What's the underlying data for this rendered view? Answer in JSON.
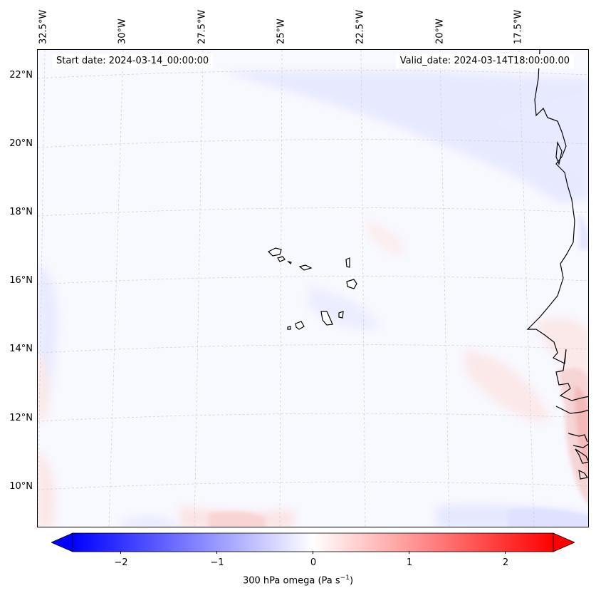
{
  "map": {
    "start_date": "Start date: 2024-03-14_00:00:00",
    "valid_date": "Valid_date: 2024-03-14T18:00:00.00",
    "lon_labels": [
      "32.5°W",
      "30°W",
      "27.5°W",
      "25°W",
      "22.5°W",
      "20°W",
      "17.5°W"
    ],
    "lat_labels": [
      "22°N",
      "20°N",
      "18°N",
      "16°N",
      "14°N",
      "12°N",
      "10°N"
    ],
    "gridlines": true,
    "variable": "300 hPa omega",
    "colormap": "bwr",
    "colors": {
      "negative": "#0000ff",
      "zero": "#ffffff",
      "positive": "#ff0000",
      "coast": "#000000",
      "grid": "#cccccc"
    }
  },
  "colorbar": {
    "label_text": "300 hPa omega (Pa s",
    "label_sup": "−1",
    "label_close": ")",
    "range": [
      -2.5,
      2.5
    ],
    "ticks": [
      "−2",
      "−1",
      "0",
      "1",
      "2"
    ],
    "extend": "both"
  }
}
